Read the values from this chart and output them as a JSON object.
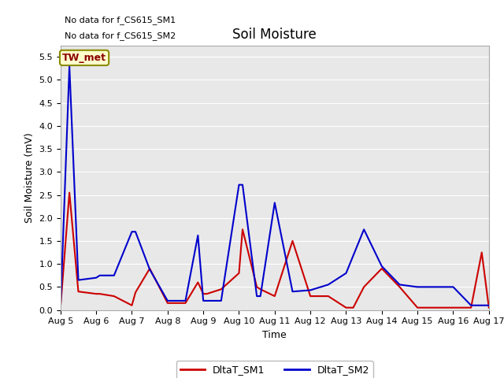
{
  "title": "Soil Moisture",
  "ylabel": "Soil Moisture (mV)",
  "xlabel": "Time",
  "text_no_data_1": "No data for f_CS615_SM1",
  "text_no_data_2": "No data for f_CS615_SM2",
  "tw_met_label": "TW_met",
  "ylim": [
    0.0,
    5.75
  ],
  "yticks": [
    0.0,
    0.5,
    1.0,
    1.5,
    2.0,
    2.5,
    3.0,
    3.5,
    4.0,
    4.5,
    5.0,
    5.5
  ],
  "background_color": "#ffffff",
  "plot_bg_color": "#e8e8e8",
  "sm1_color": "#cc0000",
  "sm2_color": "#0000cc",
  "legend_entries": [
    "DltaT_SM1",
    "DltaT_SM2"
  ],
  "x_sm1": [
    5.0,
    5.25,
    5.5,
    6.0,
    6.1,
    6.5,
    7.0,
    7.1,
    7.5,
    8.0,
    8.5,
    8.85,
    9.0,
    9.1,
    9.5,
    10.0,
    10.1,
    10.5,
    10.6,
    11.0,
    11.5,
    12.0,
    12.5,
    13.0,
    13.2,
    13.5,
    14.0,
    14.5,
    15.0,
    15.5,
    16.0,
    16.5,
    16.8,
    17.0
  ],
  "y_sm1": [
    0.05,
    2.55,
    0.4,
    0.35,
    0.35,
    0.3,
    0.1,
    0.38,
    0.9,
    0.15,
    0.15,
    0.6,
    0.35,
    0.35,
    0.45,
    0.8,
    1.75,
    0.5,
    0.45,
    0.3,
    1.5,
    0.3,
    0.3,
    0.05,
    0.05,
    0.5,
    0.9,
    0.5,
    0.05,
    0.05,
    0.05,
    0.05,
    1.25,
    0.05
  ],
  "x_sm2": [
    5.0,
    5.25,
    5.5,
    6.0,
    6.1,
    6.5,
    7.0,
    7.1,
    7.5,
    8.0,
    8.5,
    8.85,
    9.0,
    9.1,
    9.5,
    10.0,
    10.1,
    10.5,
    10.6,
    11.0,
    11.5,
    12.0,
    12.5,
    13.0,
    13.5,
    14.0,
    14.5,
    15.0,
    15.5,
    16.0,
    16.5,
    17.0
  ],
  "y_sm2": [
    0.05,
    5.3,
    0.65,
    0.7,
    0.75,
    0.75,
    1.7,
    1.7,
    0.88,
    0.2,
    0.2,
    1.62,
    0.2,
    0.2,
    0.2,
    2.72,
    2.72,
    0.3,
    0.3,
    2.33,
    0.4,
    0.43,
    0.55,
    0.8,
    1.75,
    0.95,
    0.55,
    0.5,
    0.5,
    0.5,
    0.1,
    0.1
  ]
}
